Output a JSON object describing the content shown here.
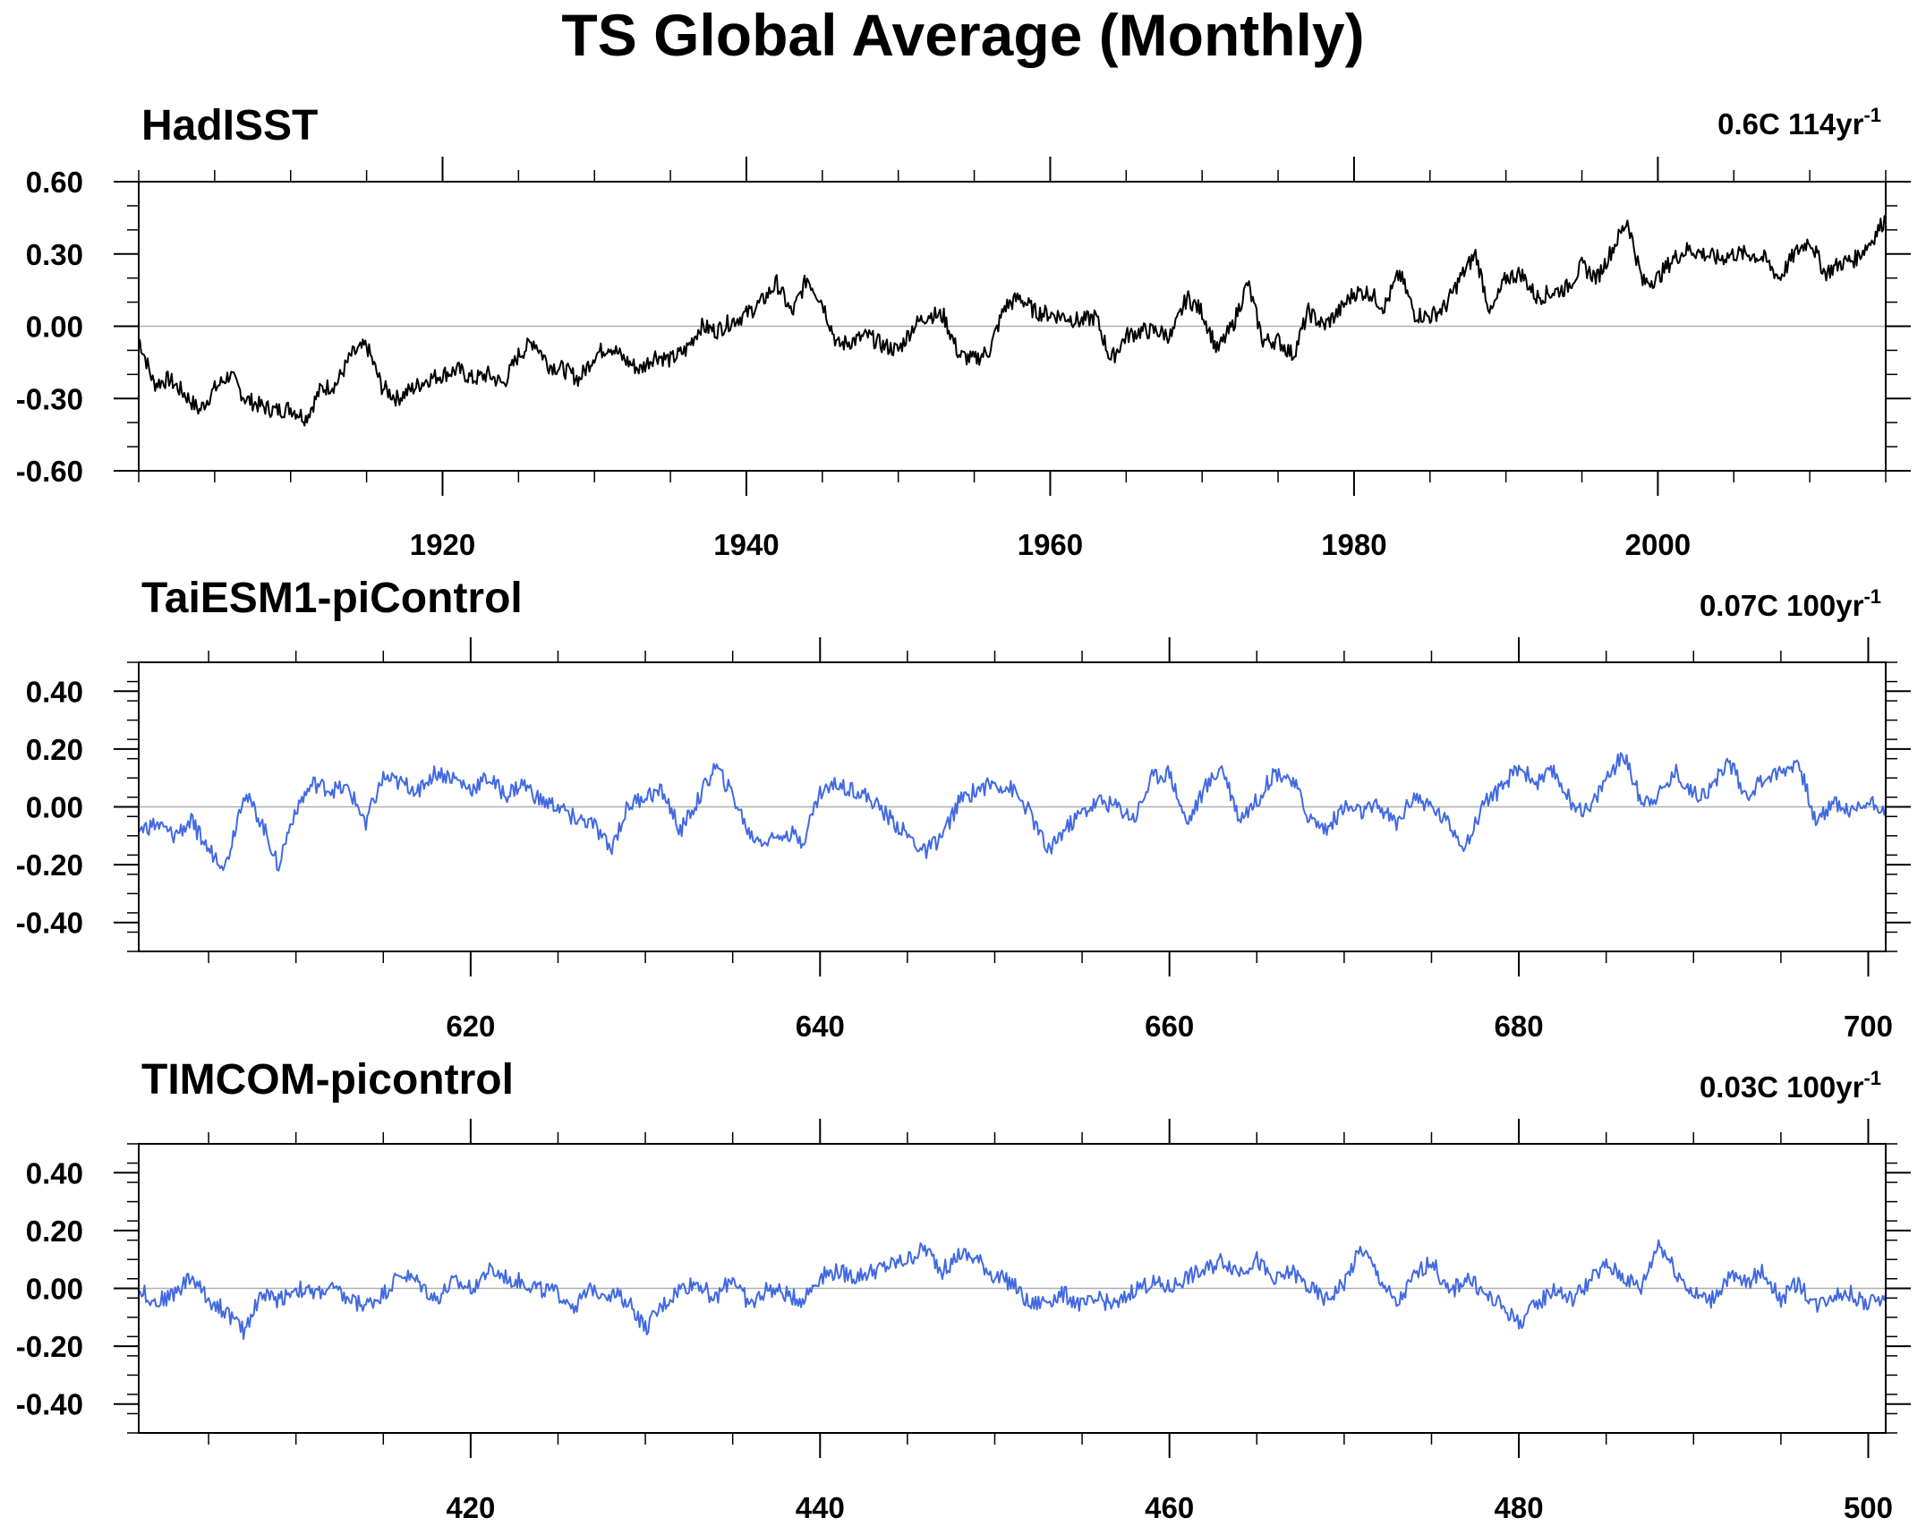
{
  "figure": {
    "title": "TS Global Average (Monthly)"
  },
  "chart_data": [
    {
      "type": "line",
      "title": "HadISST",
      "trend_label": "0.6C 114yr",
      "trend_exp": "-1",
      "line_color": "#000000",
      "xlabel": "",
      "ylabel": "",
      "xlim": [
        1900,
        2015
      ],
      "ylim": [
        -0.6,
        0.6
      ],
      "xticks": [
        1920,
        1940,
        1960,
        1980,
        2000
      ],
      "xtick_labels": [
        "1920",
        "1940",
        "1960",
        "1980",
        "2000"
      ],
      "yticks": [
        -0.6,
        -0.3,
        0.0,
        0.3,
        0.6
      ],
      "ytick_labels": [
        "-0.60",
        "-0.30",
        "0.00",
        "0.30",
        "0.60"
      ],
      "zero_line": true,
      "grid": false,
      "series": [
        {
          "x": [
            1900,
            1901,
            1902,
            1903,
            1904,
            1905,
            1906,
            1907,
            1908,
            1909,
            1910,
            1911,
            1912,
            1913,
            1914,
            1915,
            1916,
            1917,
            1918,
            1919,
            1920,
            1921,
            1922,
            1923,
            1924,
            1925,
            1926,
            1927,
            1928,
            1929,
            1930,
            1931,
            1932,
            1933,
            1934,
            1935,
            1936,
            1937,
            1938,
            1939,
            1940,
            1941,
            1942,
            1943,
            1944,
            1945,
            1946,
            1947,
            1948,
            1949,
            1950,
            1951,
            1952,
            1953,
            1954,
            1955,
            1956,
            1957,
            1958,
            1959,
            1960,
            1961,
            1962,
            1963,
            1964,
            1965,
            1966,
            1967,
            1968,
            1969,
            1970,
            1971,
            1972,
            1973,
            1974,
            1975,
            1976,
            1977,
            1978,
            1979,
            1980,
            1981,
            1982,
            1983,
            1984,
            1985,
            1986,
            1987,
            1988,
            1989,
            1990,
            1991,
            1992,
            1993,
            1994,
            1995,
            1996,
            1997,
            1998,
            1999,
            2000,
            2001,
            2002,
            2003,
            2004,
            2005,
            2006,
            2007,
            2008,
            2009,
            2010,
            2011,
            2012,
            2013,
            2014,
            2015
          ],
          "y": [
            -0.05,
            -0.24,
            -0.22,
            -0.28,
            -0.35,
            -0.26,
            -0.2,
            -0.3,
            -0.33,
            -0.35,
            -0.34,
            -0.38,
            -0.26,
            -0.24,
            -0.12,
            -0.08,
            -0.25,
            -0.3,
            -0.26,
            -0.22,
            -0.2,
            -0.18,
            -0.22,
            -0.2,
            -0.24,
            -0.12,
            -0.06,
            -0.16,
            -0.18,
            -0.22,
            -0.12,
            -0.08,
            -0.14,
            -0.18,
            -0.12,
            -0.14,
            -0.1,
            0.0,
            -0.02,
            0.02,
            0.05,
            0.1,
            0.18,
            0.05,
            0.2,
            0.1,
            -0.08,
            -0.06,
            -0.04,
            -0.08,
            -0.1,
            0.0,
            0.05,
            0.04,
            -0.12,
            -0.14,
            -0.1,
            0.08,
            0.12,
            0.06,
            0.05,
            0.04,
            0.02,
            0.04,
            -0.14,
            -0.04,
            -0.02,
            -0.02,
            -0.04,
            0.12,
            0.06,
            -0.1,
            0.0,
            0.18,
            -0.06,
            -0.06,
            -0.12,
            0.06,
            0.0,
            0.06,
            0.14,
            0.14,
            0.08,
            0.22,
            0.05,
            0.04,
            0.08,
            0.2,
            0.3,
            0.05,
            0.2,
            0.22,
            0.12,
            0.14,
            0.16,
            0.25,
            0.2,
            0.32,
            0.44,
            0.18,
            0.2,
            0.28,
            0.32,
            0.3,
            0.28,
            0.3,
            0.3,
            0.28,
            0.2,
            0.3,
            0.36,
            0.22,
            0.26,
            0.28,
            0.35,
            0.45
          ]
        }
      ]
    },
    {
      "type": "line",
      "title": "TaiESM1-piControl",
      "trend_label": "0.07C 100yr",
      "trend_exp": "-1",
      "line_color": "#4169e1",
      "xlabel": "",
      "ylabel": "",
      "xlim": [
        601,
        701
      ],
      "ylim": [
        -0.5,
        0.5
      ],
      "xticks": [
        620,
        640,
        660,
        680,
        700
      ],
      "xtick_labels": [
        "620",
        "640",
        "660",
        "680",
        "700"
      ],
      "yticks": [
        -0.4,
        -0.2,
        0.0,
        0.2,
        0.4
      ],
      "ytick_labels": [
        "-0.40",
        "-0.20",
        "0.00",
        "0.20",
        "0.40"
      ],
      "zero_line": true,
      "grid": false,
      "series": [
        {
          "x": [
            601,
            602,
            603,
            604,
            605,
            606,
            607,
            608,
            609,
            610,
            611,
            612,
            613,
            614,
            615,
            616,
            617,
            618,
            619,
            620,
            621,
            622,
            623,
            624,
            625,
            626,
            627,
            628,
            629,
            630,
            631,
            632,
            633,
            634,
            635,
            636,
            637,
            638,
            639,
            640,
            641,
            642,
            643,
            644,
            645,
            646,
            647,
            648,
            649,
            650,
            651,
            652,
            653,
            654,
            655,
            656,
            657,
            658,
            659,
            660,
            661,
            662,
            663,
            664,
            665,
            666,
            667,
            668,
            669,
            670,
            671,
            672,
            673,
            674,
            675,
            676,
            677,
            678,
            679,
            680,
            681,
            682,
            683,
            684,
            685,
            686,
            687,
            688,
            689,
            690,
            691,
            692,
            693,
            694,
            695,
            696,
            697,
            698,
            699,
            700,
            701
          ],
          "y": [
            -0.08,
            -0.06,
            -0.1,
            -0.05,
            -0.15,
            -0.2,
            0.05,
            -0.05,
            -0.2,
            0.0,
            0.08,
            0.06,
            0.06,
            -0.05,
            0.1,
            0.08,
            0.06,
            0.12,
            0.1,
            0.06,
            0.1,
            0.04,
            0.08,
            0.02,
            0.0,
            -0.04,
            -0.06,
            -0.15,
            0.0,
            0.04,
            0.05,
            -0.08,
            0.02,
            0.14,
            0.04,
            -0.1,
            -0.12,
            -0.08,
            -0.12,
            0.05,
            0.08,
            0.06,
            0.02,
            -0.04,
            -0.1,
            -0.16,
            -0.1,
            0.02,
            0.06,
            0.08,
            0.06,
            -0.02,
            -0.15,
            -0.08,
            -0.02,
            0.02,
            0.0,
            -0.04,
            0.1,
            0.12,
            -0.06,
            0.06,
            0.14,
            -0.04,
            0.02,
            0.12,
            0.1,
            -0.04,
            -0.08,
            0.0,
            -0.02,
            0.0,
            -0.06,
            0.04,
            0.0,
            -0.06,
            -0.14,
            0.02,
            0.06,
            0.14,
            0.08,
            0.12,
            0.02,
            -0.02,
            0.1,
            0.18,
            0.02,
            0.04,
            0.12,
            0.04,
            0.06,
            0.16,
            0.04,
            0.1,
            0.12,
            0.16,
            -0.06,
            0.02,
            -0.02,
            0.02,
            0.0
          ]
        }
      ]
    },
    {
      "type": "line",
      "title": "TIMCOM-picontrol",
      "trend_label": "0.03C 100yr",
      "trend_exp": "-1",
      "line_color": "#4169e1",
      "xlabel": "",
      "ylabel": "",
      "xlim": [
        401,
        501
      ],
      "ylim": [
        -0.5,
        0.5
      ],
      "xticks": [
        420,
        440,
        460,
        480,
        500
      ],
      "xtick_labels": [
        "420",
        "440",
        "460",
        "480",
        "500"
      ],
      "yticks": [
        -0.4,
        -0.2,
        0.0,
        0.2,
        0.4
      ],
      "ytick_labels": [
        "-0.40",
        "-0.20",
        "0.00",
        "0.20",
        "0.40"
      ],
      "zero_line": true,
      "grid": false,
      "series": [
        {
          "x": [
            401,
            402,
            403,
            404,
            405,
            406,
            407,
            408,
            409,
            410,
            411,
            412,
            413,
            414,
            415,
            416,
            417,
            418,
            419,
            420,
            421,
            422,
            423,
            424,
            425,
            426,
            427,
            428,
            429,
            430,
            431,
            432,
            433,
            434,
            435,
            436,
            437,
            438,
            439,
            440,
            441,
            442,
            443,
            444,
            445,
            446,
            447,
            448,
            449,
            450,
            451,
            452,
            453,
            454,
            455,
            456,
            457,
            458,
            459,
            460,
            461,
            462,
            463,
            464,
            465,
            466,
            467,
            468,
            469,
            470,
            471,
            472,
            473,
            474,
            475,
            476,
            477,
            478,
            479,
            480,
            481,
            482,
            483,
            484,
            485,
            486,
            487,
            488,
            489,
            490,
            491,
            492,
            493,
            494,
            495,
            496,
            497,
            498,
            499,
            500,
            501
          ],
          "y": [
            0.0,
            -0.05,
            -0.02,
            0.04,
            -0.04,
            -0.08,
            -0.15,
            -0.02,
            -0.04,
            0.0,
            -0.02,
            0.0,
            -0.04,
            -0.06,
            -0.02,
            0.05,
            0.02,
            -0.04,
            0.02,
            0.0,
            0.06,
            0.04,
            0.02,
            0.0,
            -0.02,
            -0.06,
            0.0,
            -0.02,
            -0.04,
            -0.14,
            -0.06,
            0.0,
            0.02,
            -0.04,
            0.04,
            -0.06,
            0.0,
            -0.02,
            -0.04,
            0.04,
            0.06,
            0.04,
            0.06,
            0.08,
            0.1,
            0.14,
            0.06,
            0.12,
            0.1,
            0.04,
            0.02,
            -0.06,
            -0.04,
            -0.02,
            -0.06,
            -0.04,
            -0.06,
            0.0,
            0.02,
            0.0,
            0.04,
            0.06,
            0.1,
            0.06,
            0.1,
            0.02,
            0.06,
            0.0,
            -0.04,
            0.02,
            0.14,
            0.04,
            -0.06,
            0.04,
            0.1,
            -0.02,
            0.04,
            -0.02,
            -0.06,
            -0.12,
            -0.06,
            0.0,
            -0.04,
            0.02,
            0.08,
            0.04,
            0.0,
            0.16,
            0.06,
            -0.02,
            -0.04,
            0.04,
            0.02,
            0.06,
            -0.04,
            0.02,
            -0.06,
            -0.02,
            -0.02,
            -0.06,
            -0.02
          ]
        }
      ]
    }
  ]
}
